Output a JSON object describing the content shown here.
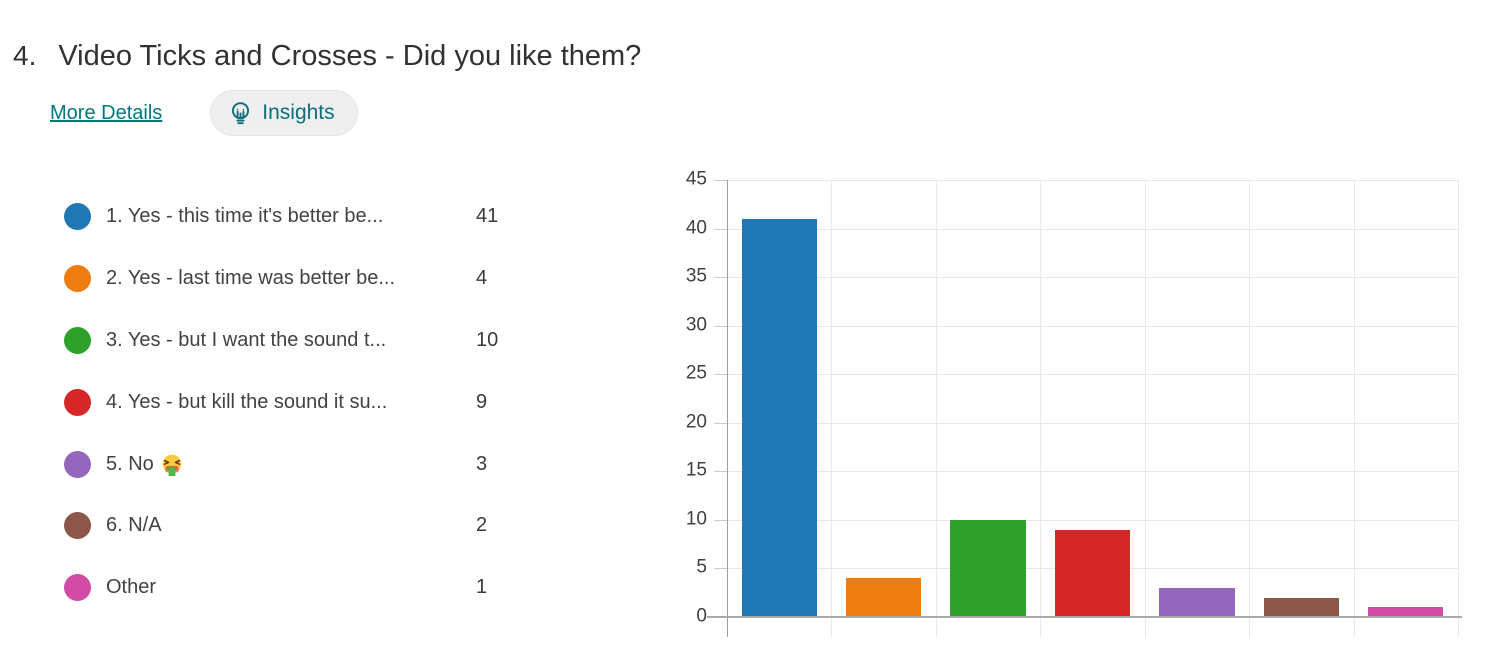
{
  "question": {
    "number": "4.",
    "title": "Video Ticks and Crosses - Did you like them?"
  },
  "toolbar": {
    "more_details_label": "More Details",
    "insights_label": "Insights"
  },
  "colors": {
    "accent_teal": "#03787C",
    "series": [
      "#1F77B4",
      "#EE7C0F",
      "#2EA12C",
      "#D62728",
      "#9467BD",
      "#8C564B",
      "#D24BA4"
    ]
  },
  "legend": {
    "items": [
      {
        "label": "1. Yes - this time it's better be...",
        "emoji": "",
        "value": "41",
        "color": "#1F77B4"
      },
      {
        "label": "2. Yes - last time was better be...",
        "emoji": "",
        "value": "4",
        "color": "#EE7C0F"
      },
      {
        "label": "3. Yes - but I want the sound t...",
        "emoji": "",
        "value": "10",
        "color": "#2EA12C"
      },
      {
        "label": "4. Yes - but kill the sound it su...",
        "emoji": "",
        "value": "9",
        "color": "#D62728"
      },
      {
        "label": "5. No",
        "emoji": "🤮",
        "value": "3",
        "color": "#9467BD"
      },
      {
        "label": "6. N/A",
        "emoji": "",
        "value": "2",
        "color": "#8C564B"
      },
      {
        "label": "Other",
        "emoji": "",
        "value": "1",
        "color": "#D24BA4"
      }
    ]
  },
  "chart_data": {
    "type": "bar",
    "categories": [
      "1. Yes - this time it's better be...",
      "2. Yes - last time was better be...",
      "3. Yes - but I want the sound t...",
      "4. Yes - but kill the sound it su...",
      "5. No 🤮",
      "6. N/A",
      "Other"
    ],
    "values": [
      41,
      4,
      10,
      9,
      3,
      2,
      1
    ],
    "colors": [
      "#1F77B4",
      "#EE7C0F",
      "#2EA12C",
      "#D62728",
      "#9467BD",
      "#8C564B",
      "#D24BA4"
    ],
    "title": "",
    "xlabel": "",
    "ylabel": "",
    "ylim": [
      0,
      45
    ],
    "ytick_step": 5,
    "grid": true,
    "legend_position": "left",
    "x_axis_labels_shown": false
  }
}
